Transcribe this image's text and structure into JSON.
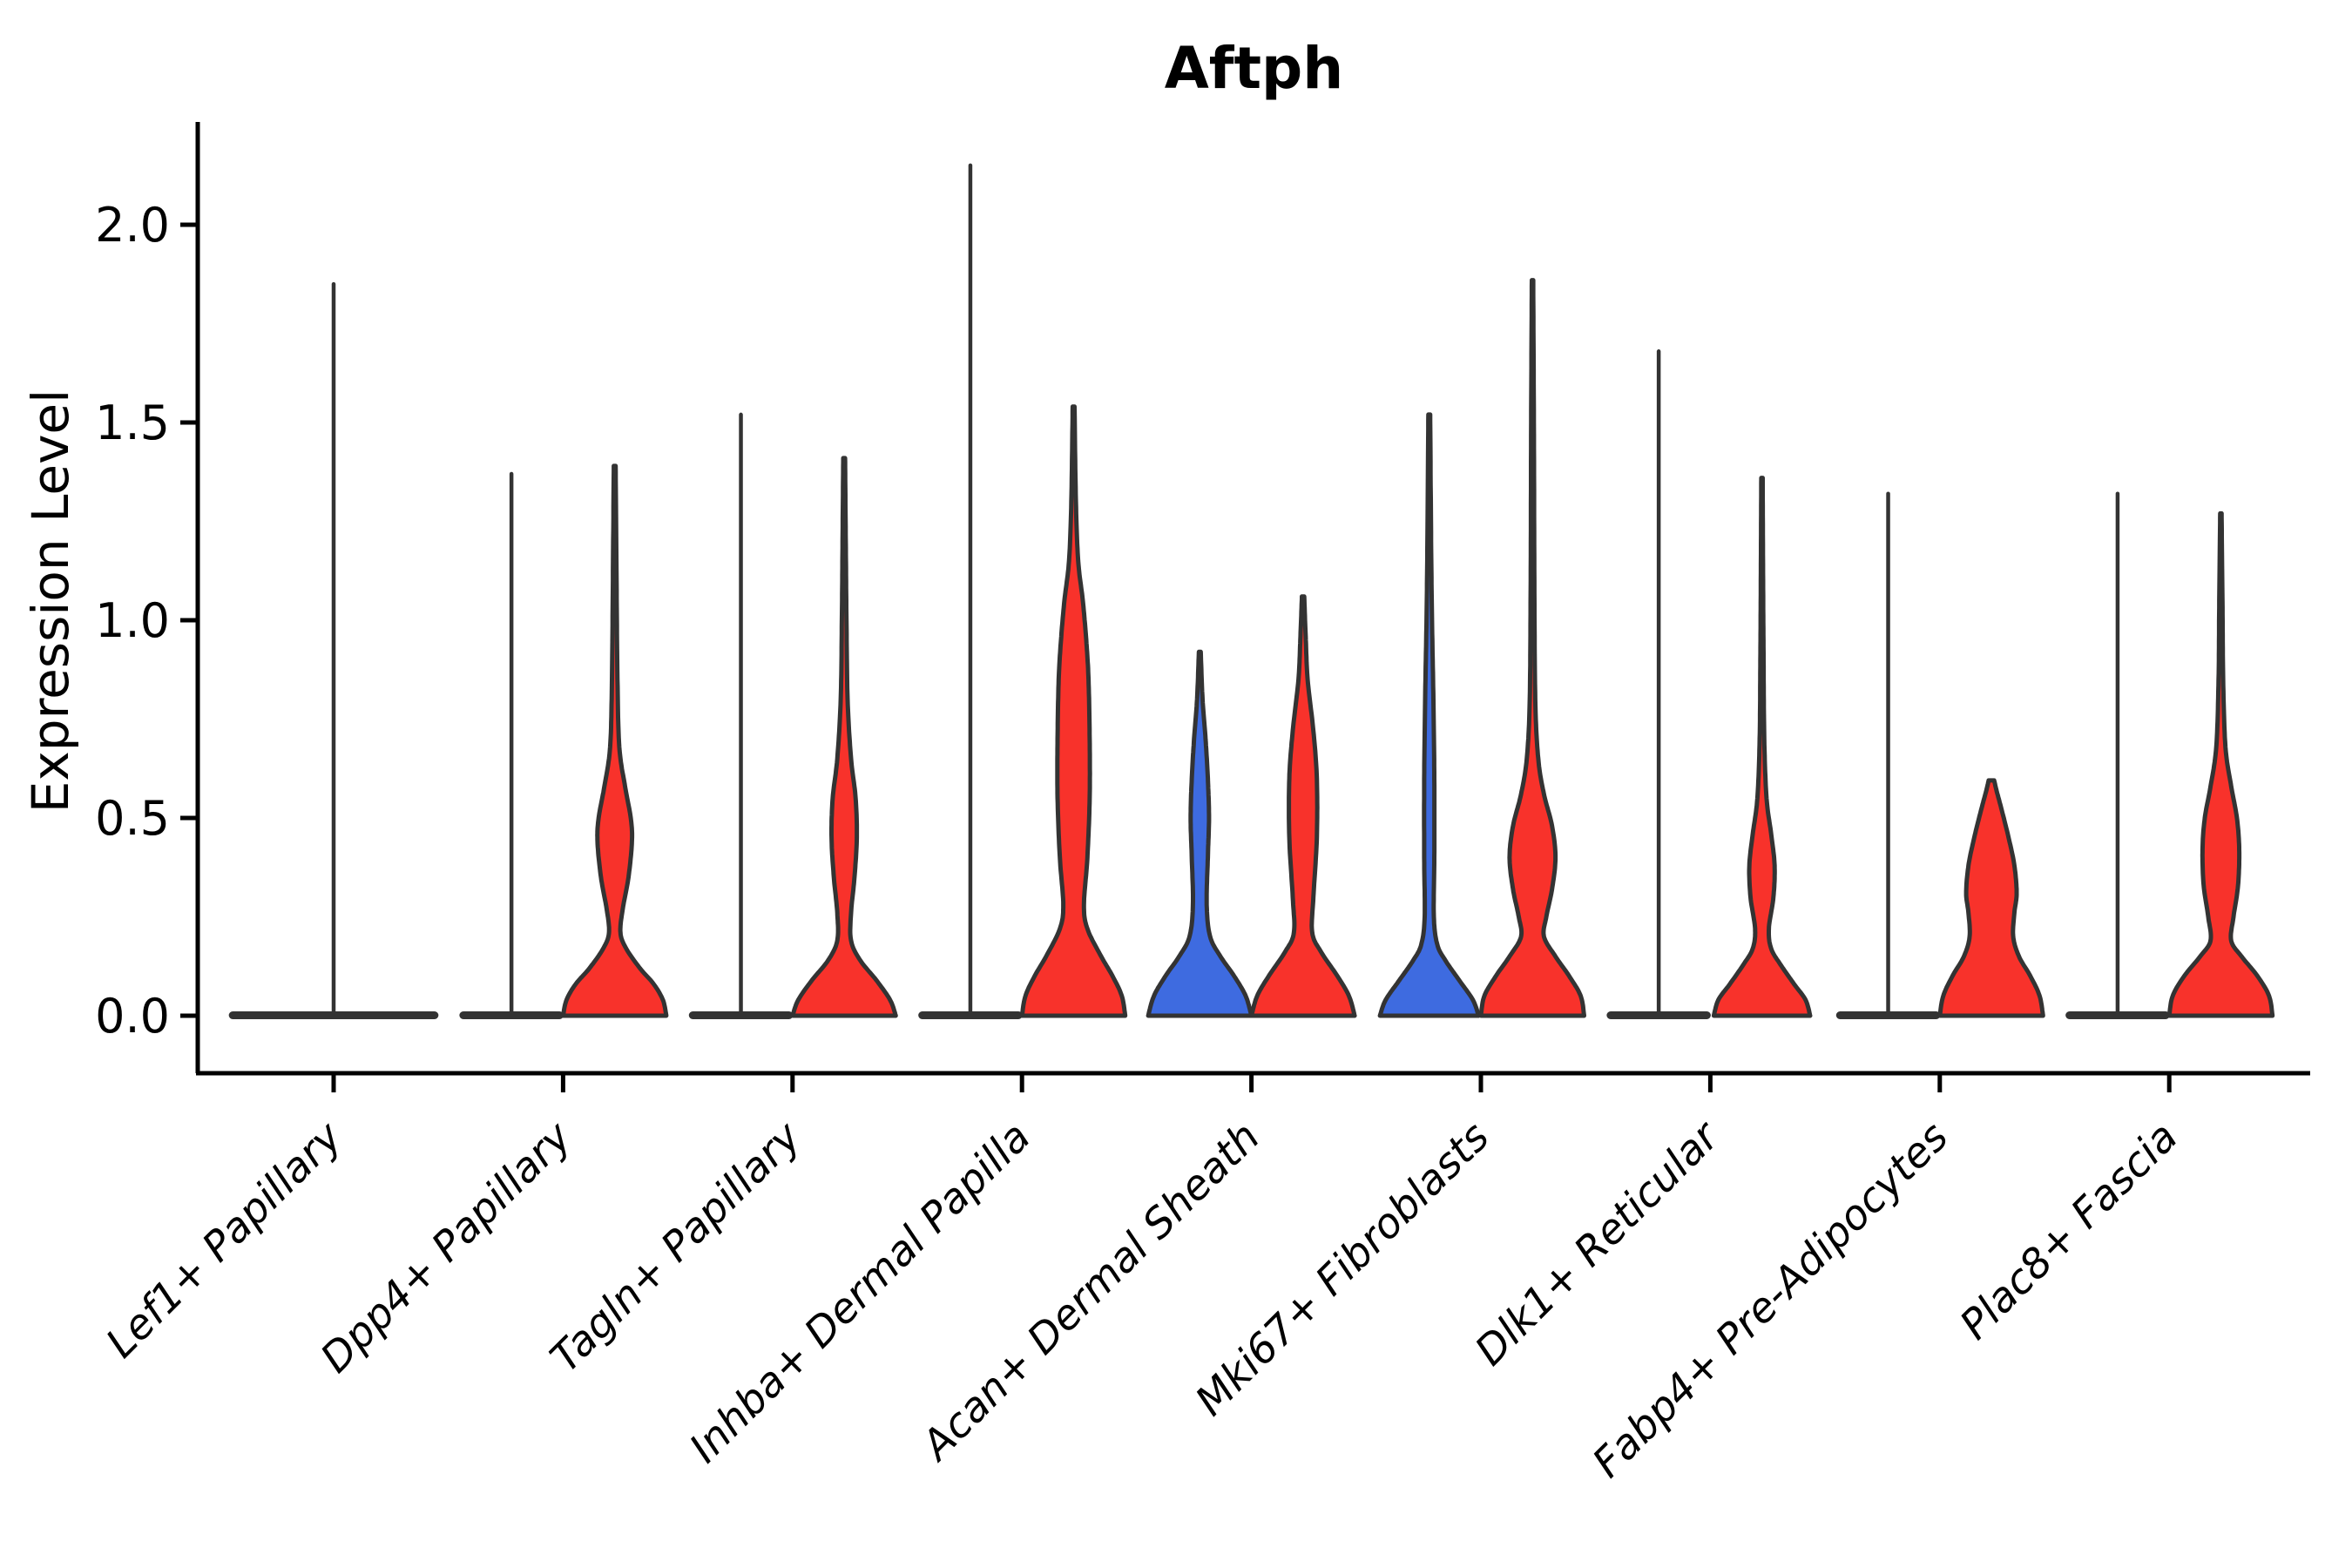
{
  "chart_data": {
    "type": "violin",
    "title": "Aftph",
    "ylabel": "Expression Level",
    "xlabel": "",
    "grid": false,
    "legend": null,
    "ylim": [
      -0.15,
      2.26
    ],
    "yticks": [
      0.0,
      0.5,
      1.0,
      1.5,
      2.0
    ],
    "ytick_labels": [
      "0.0",
      "0.5",
      "1.0",
      "1.5",
      "2.0"
    ],
    "colors": {
      "red": "#f8322b",
      "blue": "#3e6be0",
      "outline": "#333333",
      "axis": "#000000"
    },
    "categories": [
      {
        "label": "Lef1+ Papillary",
        "violins": [
          {
            "group": "single",
            "color": "outline",
            "flat": true,
            "max": 1.85,
            "base_halfwidth": 0.455
          }
        ]
      },
      {
        "label": "Dpp4+ Papillary",
        "violins": [
          {
            "group": "left",
            "color": "outline",
            "flat": true,
            "max": 1.37,
            "base_halfwidth": 0.225
          },
          {
            "group": "right",
            "color": "red",
            "flat": false,
            "max": 1.39,
            "profile": [
              [
                0,
                0.225
              ],
              [
                0.04,
                0.21
              ],
              [
                0.08,
                0.17
              ],
              [
                0.12,
                0.11
              ],
              [
                0.17,
                0.05
              ],
              [
                0.21,
                0.025
              ],
              [
                0.27,
                0.035
              ],
              [
                0.35,
                0.06
              ],
              [
                0.44,
                0.075
              ],
              [
                0.5,
                0.07
              ],
              [
                0.58,
                0.045
              ],
              [
                0.68,
                0.02
              ],
              [
                0.85,
                0.012
              ],
              [
                1.1,
                0.008
              ],
              [
                1.39,
                0.004
              ]
            ]
          }
        ]
      },
      {
        "label": "Tagln+ Papillary",
        "violins": [
          {
            "group": "left",
            "color": "outline",
            "flat": true,
            "max": 1.52,
            "base_halfwidth": 0.225
          },
          {
            "group": "right",
            "color": "red",
            "flat": false,
            "max": 1.41,
            "profile": [
              [
                0,
                0.225
              ],
              [
                0.04,
                0.2
              ],
              [
                0.09,
                0.14
              ],
              [
                0.14,
                0.07
              ],
              [
                0.19,
                0.03
              ],
              [
                0.26,
                0.03
              ],
              [
                0.35,
                0.045
              ],
              [
                0.45,
                0.055
              ],
              [
                0.55,
                0.05
              ],
              [
                0.65,
                0.03
              ],
              [
                0.8,
                0.015
              ],
              [
                1.0,
                0.01
              ],
              [
                1.2,
                0.007
              ],
              [
                1.41,
                0.004
              ]
            ]
          }
        ]
      },
      {
        "label": "Inhba+ Dermal Papilla",
        "violins": [
          {
            "group": "left",
            "color": "outline",
            "flat": true,
            "max": 2.15,
            "base_halfwidth": 0.225
          },
          {
            "group": "right",
            "color": "red",
            "flat": false,
            "max": 1.54,
            "profile": [
              [
                0,
                0.225
              ],
              [
                0.05,
                0.21
              ],
              [
                0.1,
                0.17
              ],
              [
                0.15,
                0.12
              ],
              [
                0.22,
                0.06
              ],
              [
                0.28,
                0.045
              ],
              [
                0.4,
                0.06
              ],
              [
                0.55,
                0.07
              ],
              [
                0.7,
                0.07
              ],
              [
                0.85,
                0.065
              ],
              [
                0.95,
                0.055
              ],
              [
                1.05,
                0.04
              ],
              [
                1.15,
                0.02
              ],
              [
                1.3,
                0.01
              ],
              [
                1.54,
                0.004
              ]
            ]
          }
        ]
      },
      {
        "label": "Acan+ Dermal Sheath",
        "violins": [
          {
            "group": "left",
            "color": "blue",
            "flat": false,
            "max": 0.92,
            "profile": [
              [
                0,
                0.225
              ],
              [
                0.05,
                0.2
              ],
              [
                0.1,
                0.15
              ],
              [
                0.15,
                0.09
              ],
              [
                0.2,
                0.045
              ],
              [
                0.28,
                0.03
              ],
              [
                0.4,
                0.035
              ],
              [
                0.5,
                0.04
              ],
              [
                0.6,
                0.035
              ],
              [
                0.7,
                0.025
              ],
              [
                0.8,
                0.012
              ],
              [
                0.92,
                0.004
              ]
            ]
          },
          {
            "group": "right",
            "color": "red",
            "flat": false,
            "max": 1.06,
            "profile": [
              [
                0,
                0.225
              ],
              [
                0.05,
                0.2
              ],
              [
                0.1,
                0.15
              ],
              [
                0.16,
                0.08
              ],
              [
                0.21,
                0.04
              ],
              [
                0.3,
                0.045
              ],
              [
                0.45,
                0.06
              ],
              [
                0.6,
                0.06
              ],
              [
                0.72,
                0.045
              ],
              [
                0.85,
                0.02
              ],
              [
                0.95,
                0.012
              ],
              [
                1.06,
                0.005
              ]
            ]
          }
        ]
      },
      {
        "label": "Mki67+ Fibroblasts",
        "violins": [
          {
            "group": "left",
            "color": "blue",
            "flat": false,
            "max": 1.52,
            "profile": [
              [
                0,
                0.215
              ],
              [
                0.04,
                0.19
              ],
              [
                0.09,
                0.13
              ],
              [
                0.14,
                0.07
              ],
              [
                0.18,
                0.035
              ],
              [
                0.25,
                0.02
              ],
              [
                0.4,
                0.022
              ],
              [
                0.6,
                0.022
              ],
              [
                0.8,
                0.018
              ],
              [
                1.0,
                0.012
              ],
              [
                1.2,
                0.008
              ],
              [
                1.52,
                0.004
              ]
            ]
          },
          {
            "group": "right",
            "color": "red",
            "flat": false,
            "max": 1.86,
            "profile": [
              [
                0,
                0.225
              ],
              [
                0.05,
                0.21
              ],
              [
                0.1,
                0.16
              ],
              [
                0.15,
                0.1
              ],
              [
                0.2,
                0.05
              ],
              [
                0.25,
                0.06
              ],
              [
                0.32,
                0.085
              ],
              [
                0.4,
                0.1
              ],
              [
                0.48,
                0.085
              ],
              [
                0.56,
                0.05
              ],
              [
                0.65,
                0.025
              ],
              [
                0.8,
                0.012
              ],
              [
                1.1,
                0.008
              ],
              [
                1.5,
                0.006
              ],
              [
                1.86,
                0.003
              ]
            ]
          }
        ]
      },
      {
        "label": "Dlk1+ Reticular",
        "violins": [
          {
            "group": "left",
            "color": "outline",
            "flat": true,
            "max": 1.68,
            "base_halfwidth": 0.225
          },
          {
            "group": "right",
            "color": "red",
            "flat": false,
            "max": 1.36,
            "profile": [
              [
                0,
                0.21
              ],
              [
                0.04,
                0.19
              ],
              [
                0.08,
                0.14
              ],
              [
                0.13,
                0.08
              ],
              [
                0.17,
                0.04
              ],
              [
                0.22,
                0.03
              ],
              [
                0.3,
                0.05
              ],
              [
                0.38,
                0.055
              ],
              [
                0.46,
                0.04
              ],
              [
                0.55,
                0.02
              ],
              [
                0.7,
                0.01
              ],
              [
                0.9,
                0.007
              ],
              [
                1.1,
                0.005
              ],
              [
                1.36,
                0.003
              ]
            ]
          }
        ]
      },
      {
        "label": "Fabp4+ Pre-Adipocytes",
        "violins": [
          {
            "group": "left",
            "color": "outline",
            "flat": true,
            "max": 1.32,
            "base_halfwidth": 0.225
          },
          {
            "group": "right",
            "color": "red",
            "flat": false,
            "max": 0.595,
            "profile": [
              [
                0,
                0.225
              ],
              [
                0.05,
                0.21
              ],
              [
                0.1,
                0.17
              ],
              [
                0.15,
                0.12
              ],
              [
                0.2,
                0.095
              ],
              [
                0.26,
                0.1
              ],
              [
                0.31,
                0.11
              ],
              [
                0.38,
                0.1
              ],
              [
                0.45,
                0.075
              ],
              [
                0.52,
                0.045
              ],
              [
                0.57,
                0.022
              ],
              [
                0.595,
                0.012
              ]
            ]
          }
        ]
      },
      {
        "label": "Plac8+ Fascia",
        "violins": [
          {
            "group": "left",
            "color": "outline",
            "flat": true,
            "max": 1.32,
            "base_halfwidth": 0.225
          },
          {
            "group": "right",
            "color": "red",
            "flat": false,
            "max": 1.27,
            "profile": [
              [
                0,
                0.225
              ],
              [
                0.05,
                0.21
              ],
              [
                0.1,
                0.16
              ],
              [
                0.15,
                0.09
              ],
              [
                0.19,
                0.045
              ],
              [
                0.25,
                0.055
              ],
              [
                0.33,
                0.075
              ],
              [
                0.42,
                0.08
              ],
              [
                0.5,
                0.07
              ],
              [
                0.58,
                0.045
              ],
              [
                0.68,
                0.02
              ],
              [
                0.85,
                0.01
              ],
              [
                1.05,
                0.007
              ],
              [
                1.27,
                0.003
              ]
            ]
          }
        ]
      }
    ]
  }
}
